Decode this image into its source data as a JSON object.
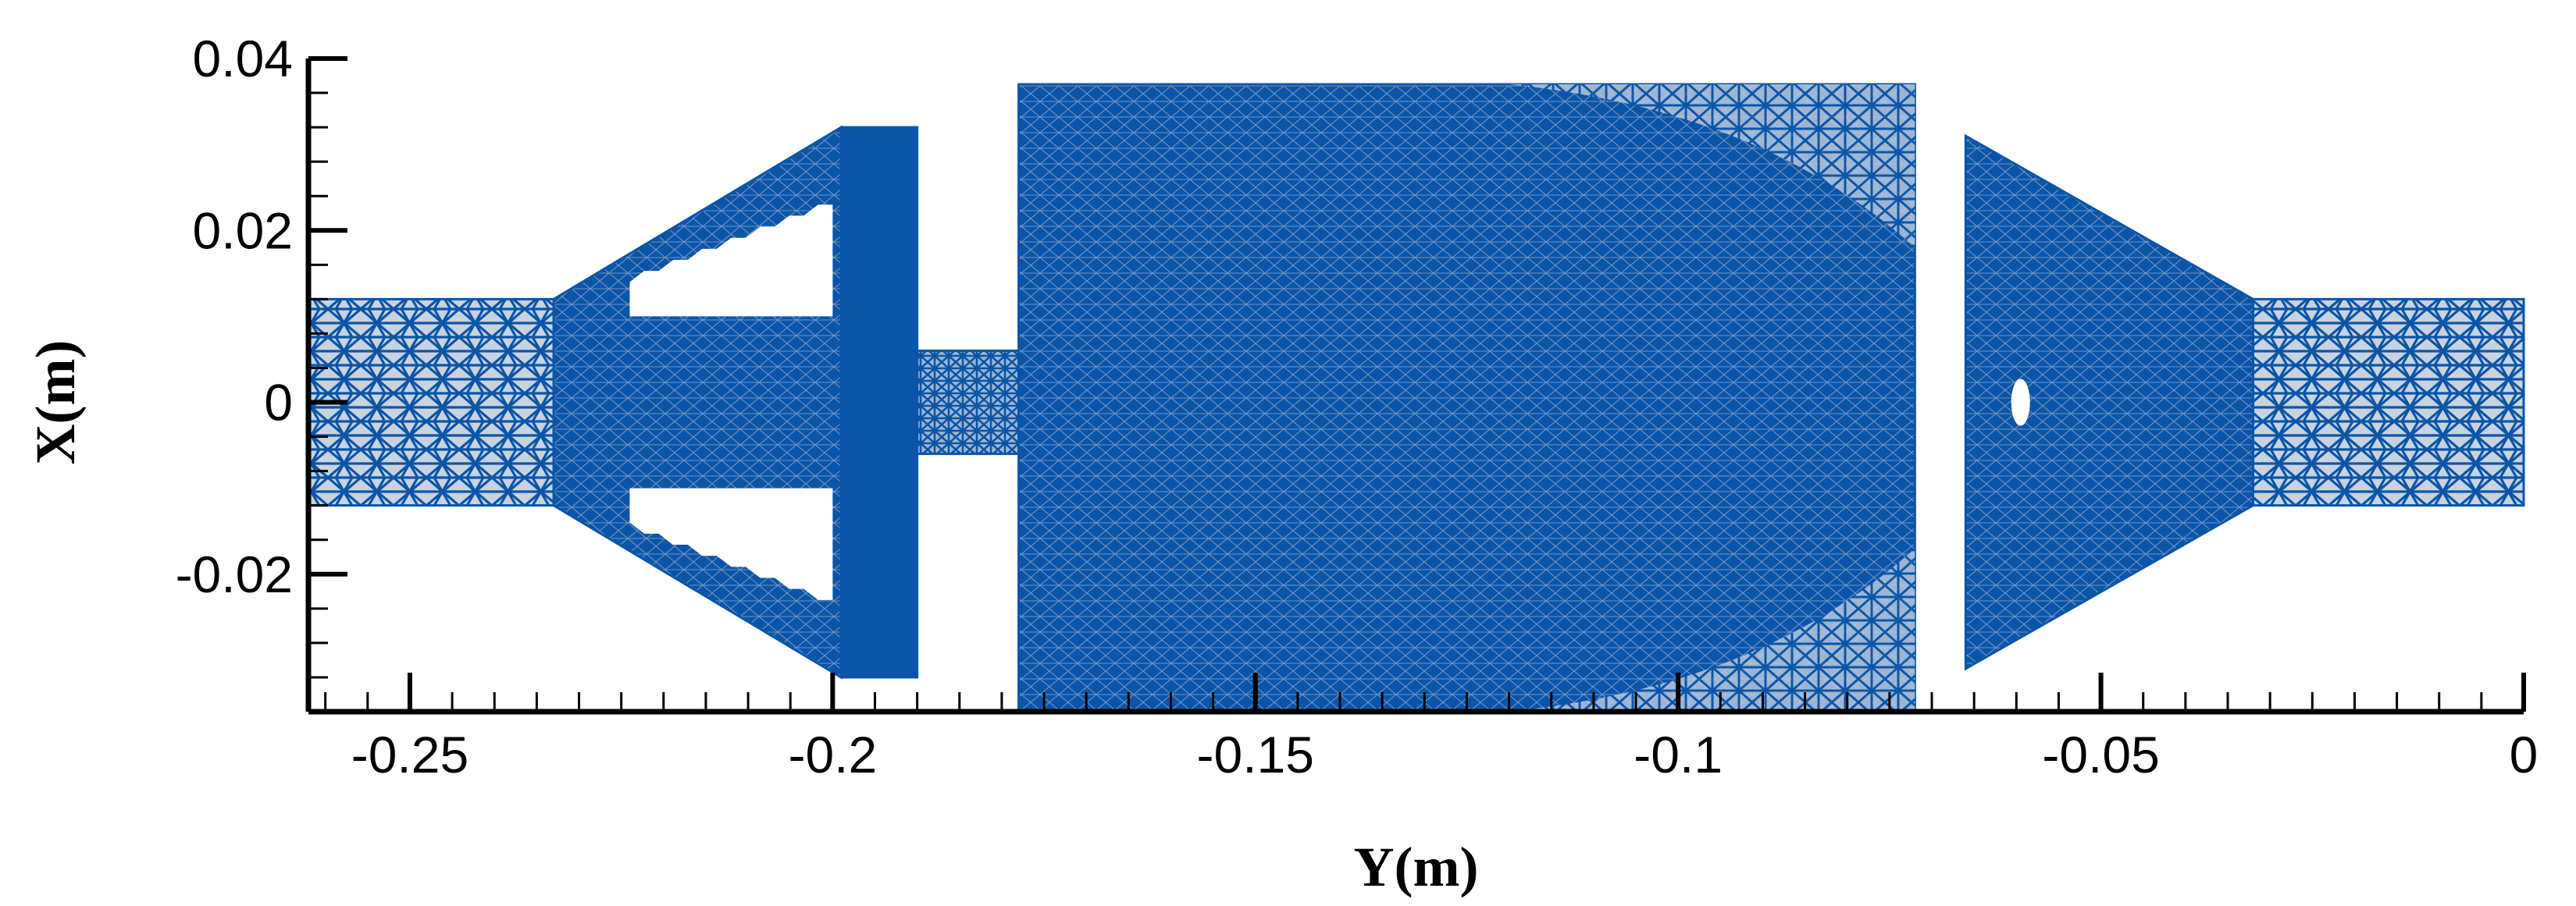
{
  "figure": {
    "x_axis": {
      "label": "Y(m)",
      "range": [
        -0.262,
        0
      ],
      "major_ticks": [
        -0.25,
        -0.2,
        -0.15,
        -0.1,
        -0.05,
        0
      ],
      "tick_labels": [
        "-0.25",
        "-0.2",
        "-0.15",
        "-0.1",
        "-0.05",
        "0"
      ],
      "minor_step": 0.005
    },
    "y_axis": {
      "label": "X(m)",
      "range": [
        -0.036,
        0.04
      ],
      "major_ticks": [
        -0.02,
        0,
        0.02,
        0.04
      ],
      "tick_labels": [
        "-0.02",
        "0",
        "0.02",
        "0.04"
      ],
      "minor_step": 0.004
    },
    "colors": {
      "mesh": "#0a55a8",
      "mesh_light": "#c9d3e0",
      "axis": "#000000",
      "background": "#ffffff"
    },
    "mesh_sections": [
      {
        "name": "inlet-pipe",
        "shape": "tube",
        "y_start": -0.262,
        "y_end": -0.233,
        "x_half": 0.012,
        "density": "coarse"
      },
      {
        "name": "diffuser-cone",
        "shape": "cone",
        "y_start": -0.233,
        "y_end": -0.199,
        "x_start": 0.012,
        "x_end": 0.032,
        "density": "dense"
      },
      {
        "name": "cone-flange",
        "shape": "block",
        "y_start": -0.199,
        "y_end": -0.19,
        "x_half": 0.032,
        "density": "solid"
      },
      {
        "name": "neck",
        "shape": "tube",
        "y_start": -0.19,
        "y_end": -0.178,
        "x_min": -0.006,
        "x_max": 0.006,
        "density": "fine"
      },
      {
        "name": "main-chamber",
        "shape": "block",
        "y_start": -0.178,
        "y_end": -0.072,
        "x_min": -0.036,
        "x_max": 0.037,
        "density": "dense"
      },
      {
        "name": "contraction-cone",
        "shape": "cone",
        "y_start": -0.066,
        "y_end": -0.032,
        "x_start": 0.031,
        "x_end": 0.012,
        "density": "dense"
      },
      {
        "name": "outlet-pipe",
        "shape": "tube",
        "y_start": -0.032,
        "y_end": 0,
        "x_half": 0.012,
        "density": "coarse"
      }
    ]
  }
}
